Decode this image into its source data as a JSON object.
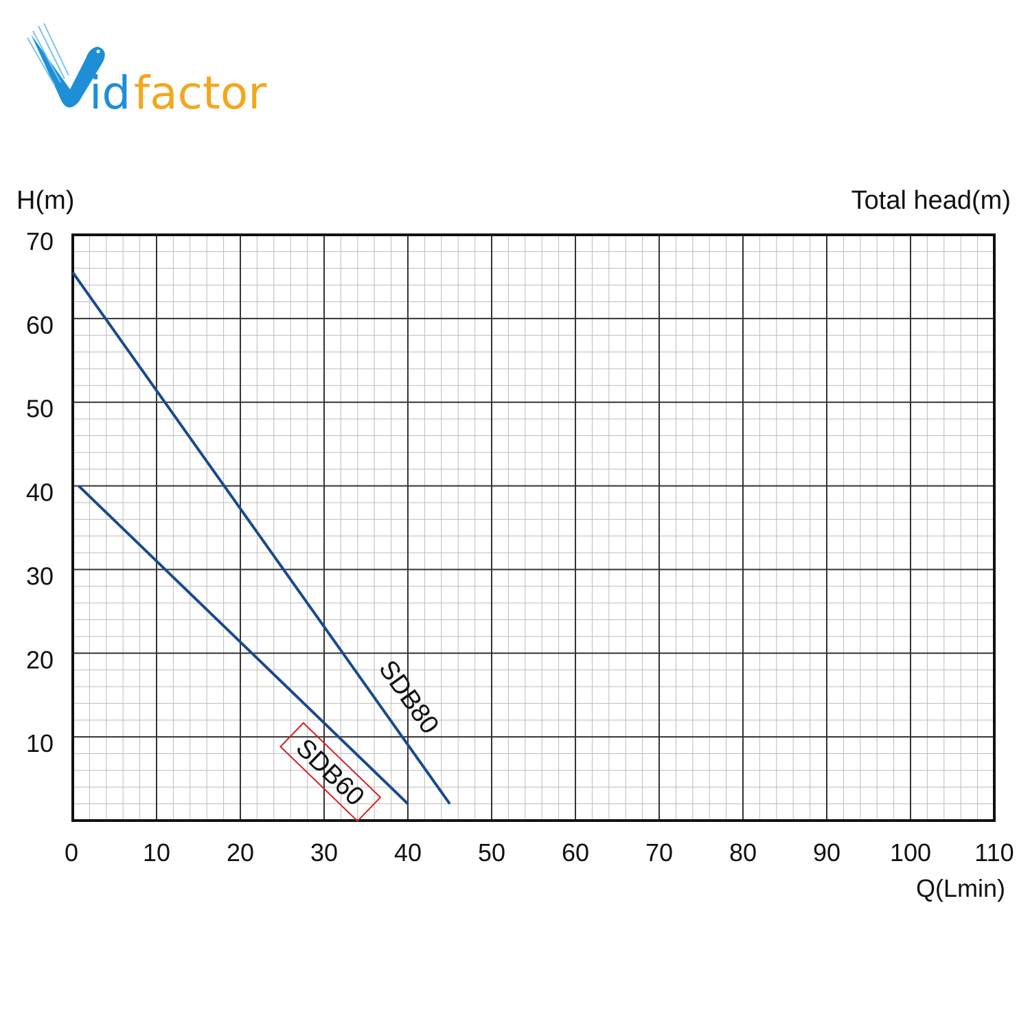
{
  "logo": {
    "text_part1": "id",
    "text_part2": "factor",
    "brand": "Vidfactor",
    "colors": {
      "blue": "#1e8fd6",
      "orange": "#f2a81d"
    }
  },
  "chart_data": {
    "type": "line",
    "title": "",
    "ylabel": "H(m)",
    "ylabel_right": "Total head(m)",
    "xlabel": "Q(Lmin)",
    "xlim": [
      0,
      110
    ],
    "ylim": [
      0,
      70
    ],
    "xticks": [
      0,
      10,
      20,
      30,
      40,
      50,
      60,
      70,
      80,
      90,
      100,
      110
    ],
    "yticks": [
      10,
      20,
      30,
      40,
      50,
      60,
      70
    ],
    "grid": true,
    "minor_grid_divisions": 5,
    "line_color": "#1a4a8c",
    "series": [
      {
        "name": "SDB80",
        "x": [
          0,
          45
        ],
        "y": [
          65.5,
          2
        ]
      },
      {
        "name": "SDB60",
        "x": [
          0.7,
          40
        ],
        "y": [
          40,
          2
        ],
        "highlight_box_color": "#d42020"
      }
    ]
  }
}
